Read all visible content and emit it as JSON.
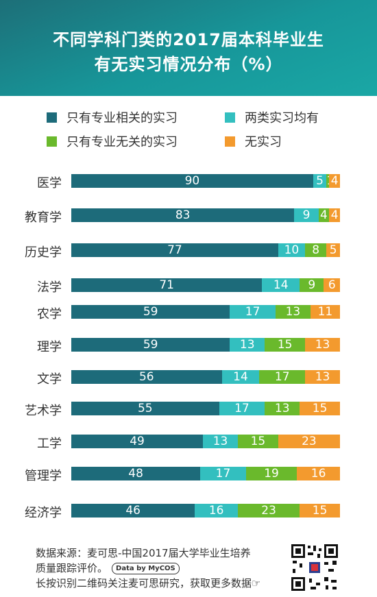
{
  "title_line1": "不同学科门类的2017届本科毕业生",
  "title_line2": "有无实习情况分布（%）",
  "watermark": "麦可思研究",
  "chart_data": {
    "type": "bar",
    "orientation": "horizontal",
    "stacked": true,
    "title": "不同学科门类的2017届本科毕业生有无实习情况分布（%）",
    "categories": [
      "医学",
      "教育学",
      "历史学",
      "法学",
      "农学",
      "理学",
      "文学",
      "艺术学",
      "工学",
      "管理学",
      "经济学"
    ],
    "series": [
      {
        "name": "只有专业相关的实习",
        "color": "#1d6b7a",
        "values": [
          90,
          83,
          77,
          71,
          59,
          59,
          56,
          55,
          49,
          48,
          46
        ]
      },
      {
        "name": "两类实习均有",
        "color": "#33bfbf",
        "values": [
          5,
          9,
          10,
          14,
          17,
          13,
          14,
          17,
          13,
          17,
          16
        ]
      },
      {
        "name": "只有专业无关的实习",
        "color": "#6ab92c",
        "values": [
          1,
          4,
          8,
          9,
          13,
          15,
          17,
          13,
          15,
          19,
          23
        ]
      },
      {
        "name": "无实习",
        "color": "#f39a2e",
        "values": [
          4,
          4,
          5,
          6,
          11,
          13,
          13,
          15,
          23,
          16,
          15
        ]
      }
    ],
    "legend_position": "top",
    "grid": false
  },
  "footer": {
    "line1": "数据来源：麦可思-中国2017届大学毕业生培养",
    "line2": "质量跟踪评价。",
    "badge": "Data by MyCOS",
    "line3": "长按识别二维码关注麦可思研究，获取更多数据☞"
  }
}
